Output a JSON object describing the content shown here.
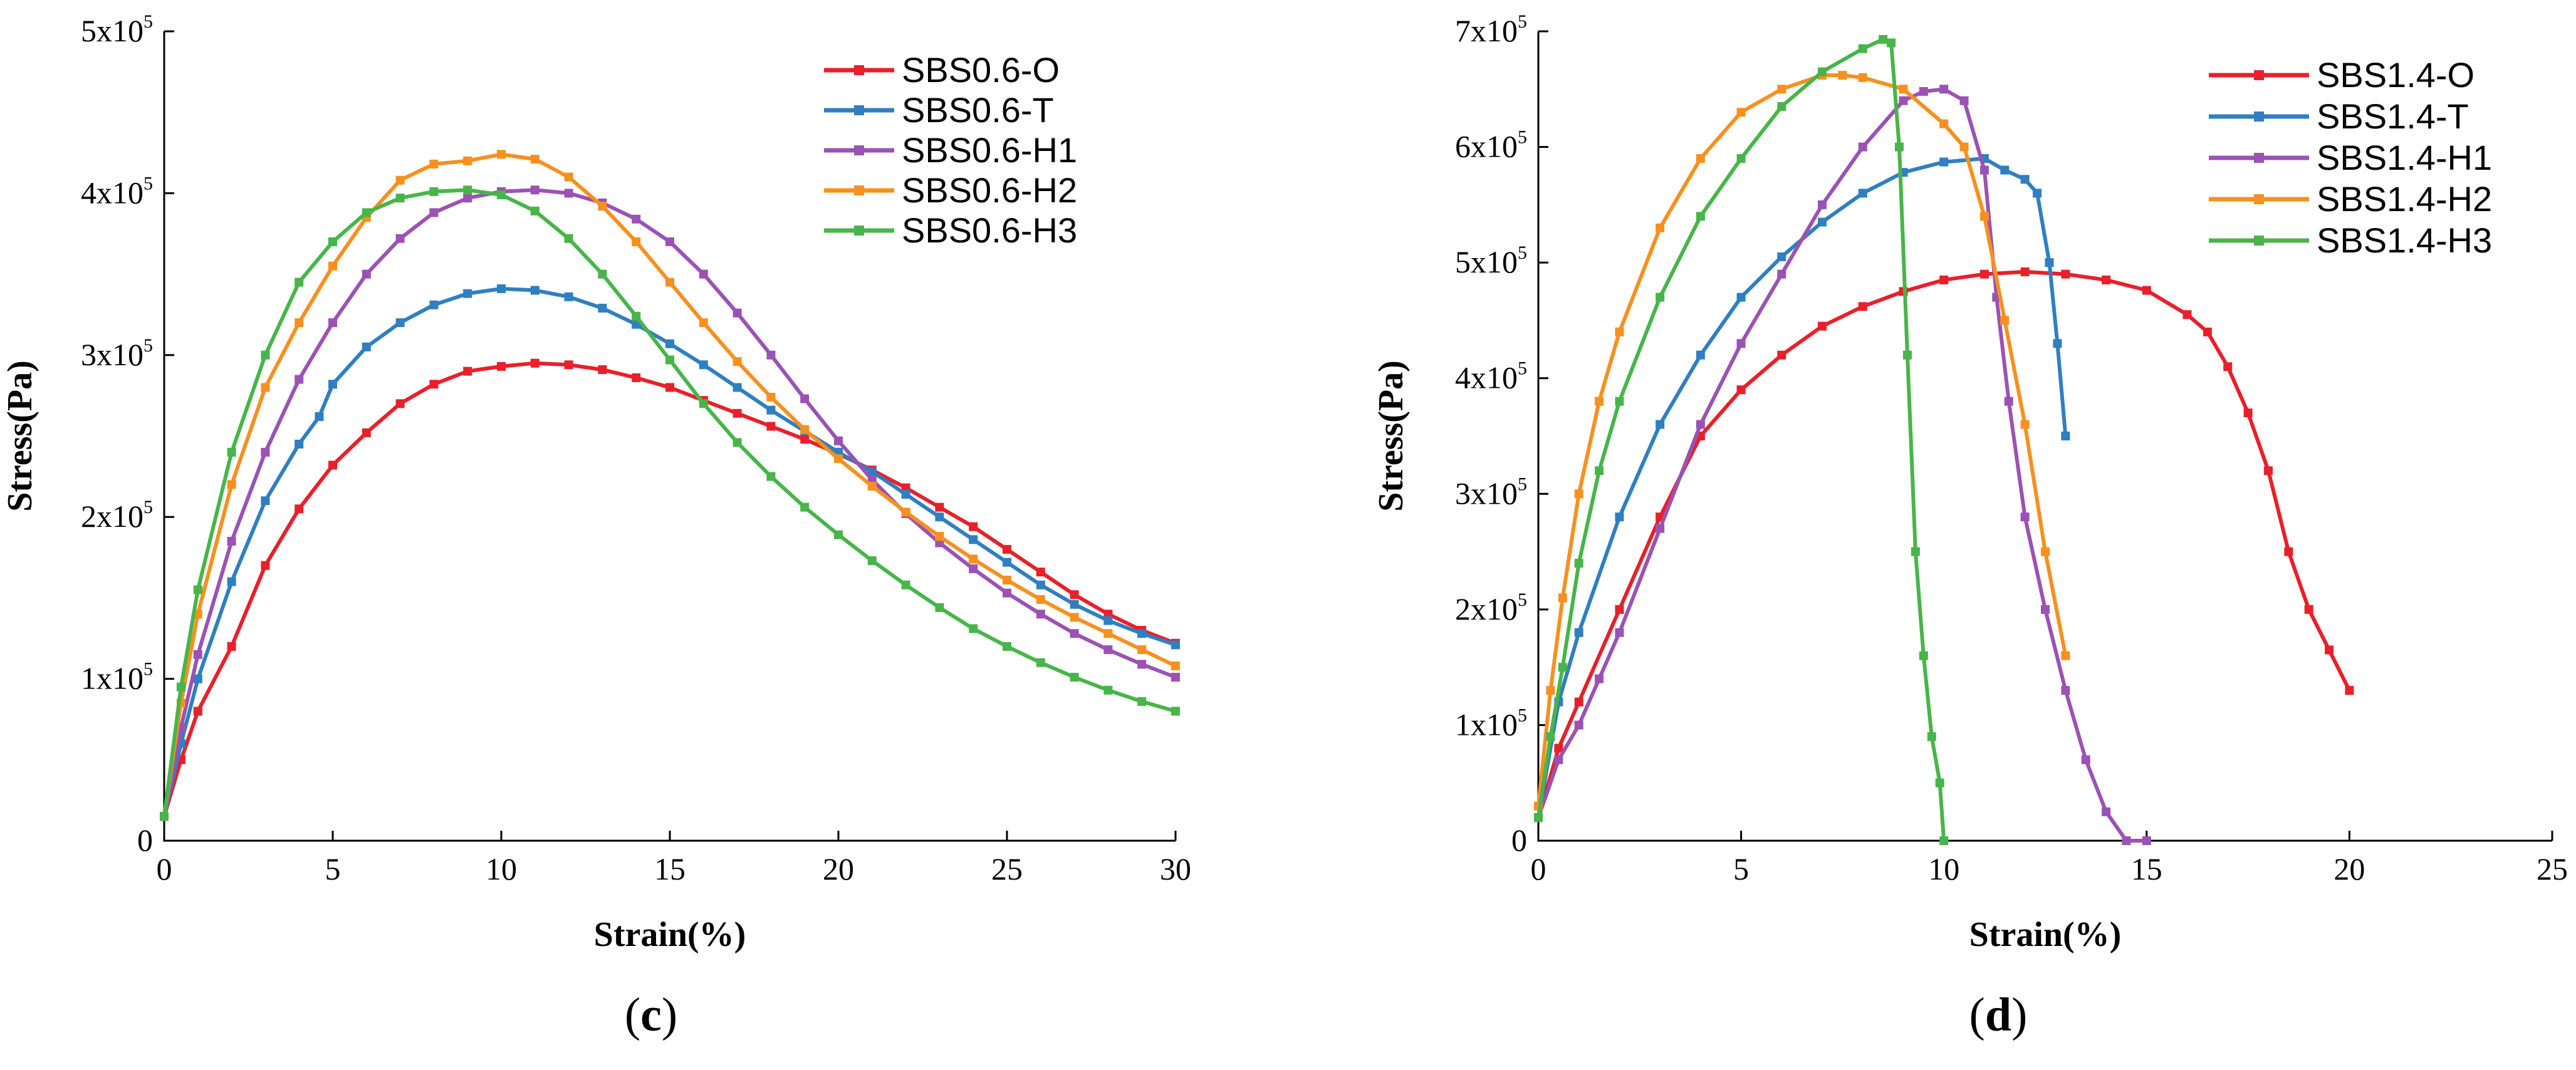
{
  "chart_data": [
    {
      "type": "line",
      "panel_label": "(c)",
      "xlabel": "Strain(%)",
      "ylabel": "Stress(Pa)",
      "xlim": [
        0,
        30
      ],
      "ylim": [
        0,
        500000
      ],
      "x_ticks": [
        0,
        5,
        10,
        15,
        20,
        25,
        30
      ],
      "x_tick_labels": [
        "0",
        "5",
        "10",
        "15",
        "20",
        "25",
        "30"
      ],
      "y_ticks": [
        0,
        100000,
        200000,
        300000,
        400000,
        500000
      ],
      "y_tick_labels": [
        {
          "base": "0",
          "exp": ""
        },
        {
          "base": "1x10",
          "exp": "5"
        },
        {
          "base": "2x10",
          "exp": "5"
        },
        {
          "base": "3x10",
          "exp": "5"
        },
        {
          "base": "4x10",
          "exp": "5"
        },
        {
          "base": "5x10",
          "exp": "5"
        }
      ],
      "legend_position": "top-right",
      "series": [
        {
          "name": "SBS0.6-O",
          "color": "#e8202a",
          "x": [
            0,
            0.5,
            1,
            2,
            3,
            4,
            5,
            6,
            7,
            8,
            9,
            10,
            11,
            12,
            13,
            14,
            15,
            16,
            17,
            18,
            19,
            20,
            21,
            22,
            23,
            24,
            25,
            26,
            27,
            28,
            29,
            30
          ],
          "y": [
            15000,
            50000,
            80000,
            120000,
            170000,
            205000,
            232000,
            252000,
            270000,
            282000,
            290000,
            293000,
            295000,
            294000,
            291000,
            286000,
            280000,
            272000,
            264000,
            256000,
            248000,
            239000,
            229000,
            218000,
            206000,
            194000,
            180000,
            166000,
            152000,
            140000,
            130000,
            122000
          ]
        },
        {
          "name": "SBS0.6-T",
          "color": "#2f7fc1",
          "x": [
            0,
            0.5,
            1,
            2,
            3,
            4,
            4.6,
            5,
            6,
            7,
            8,
            9,
            10,
            11,
            12,
            13,
            14,
            15,
            16,
            17,
            18,
            19,
            20,
            21,
            22,
            23,
            24,
            25,
            26,
            27,
            28,
            29,
            30
          ],
          "y": [
            15000,
            60000,
            100000,
            160000,
            210000,
            245000,
            262000,
            282000,
            305000,
            320000,
            331000,
            338000,
            341000,
            340000,
            336000,
            329000,
            319000,
            307000,
            294000,
            280000,
            266000,
            253000,
            240000,
            228000,
            214000,
            200000,
            186000,
            172000,
            158000,
            146000,
            136000,
            128000,
            121000
          ]
        },
        {
          "name": "SBS0.6-H1",
          "color": "#9b52b4",
          "x": [
            0,
            0.5,
            1,
            2,
            3,
            4,
            5,
            6,
            7,
            8,
            9,
            10,
            11,
            12,
            13,
            14,
            15,
            16,
            17,
            18,
            19,
            20,
            21,
            22,
            23,
            24,
            25,
            26,
            27,
            28,
            29,
            30
          ],
          "y": [
            15000,
            70000,
            115000,
            185000,
            240000,
            285000,
            320000,
            350000,
            372000,
            388000,
            397000,
            401000,
            402000,
            400000,
            394000,
            384000,
            370000,
            350000,
            326000,
            300000,
            273000,
            247000,
            223000,
            202000,
            184000,
            168000,
            153000,
            140000,
            128000,
            118000,
            109000,
            101000
          ]
        },
        {
          "name": "SBS0.6-H2",
          "color": "#f7901e",
          "x": [
            0,
            0.5,
            1,
            2,
            3,
            4,
            5,
            6,
            7,
            8,
            9,
            10,
            11,
            12,
            13,
            14,
            15,
            16,
            17,
            18,
            19,
            20,
            21,
            22,
            23,
            24,
            25,
            26,
            27,
            28,
            29,
            30
          ],
          "y": [
            15000,
            85000,
            140000,
            220000,
            280000,
            320000,
            355000,
            385000,
            408000,
            418000,
            420000,
            424000,
            421000,
            410000,
            392000,
            370000,
            345000,
            320000,
            296000,
            274000,
            254000,
            236000,
            219000,
            203000,
            188000,
            174000,
            161000,
            149000,
            138000,
            128000,
            118000,
            108000
          ]
        },
        {
          "name": "SBS0.6-H3",
          "color": "#47b549",
          "x": [
            0,
            0.5,
            1,
            2,
            3,
            4,
            5,
            6,
            7,
            8,
            9,
            10,
            11,
            12,
            13,
            14,
            15,
            16,
            17,
            18,
            19,
            20,
            21,
            22,
            23,
            24,
            25,
            26,
            27,
            28,
            29,
            30
          ],
          "y": [
            15000,
            95000,
            155000,
            240000,
            300000,
            345000,
            370000,
            388000,
            397000,
            401000,
            402000,
            399000,
            389000,
            372000,
            350000,
            324000,
            297000,
            270000,
            246000,
            225000,
            206000,
            189000,
            173000,
            158000,
            144000,
            131000,
            120000,
            110000,
            101000,
            93000,
            86000,
            80000
          ]
        }
      ]
    },
    {
      "type": "line",
      "panel_label": "(d)",
      "xlabel": "Strain(%)",
      "ylabel": "Stress(Pa)",
      "xlim": [
        0,
        25
      ],
      "ylim": [
        0,
        700000
      ],
      "x_ticks": [
        0,
        5,
        10,
        15,
        20,
        25
      ],
      "x_tick_labels": [
        "0",
        "5",
        "10",
        "15",
        "20",
        "25"
      ],
      "y_ticks": [
        0,
        100000,
        200000,
        300000,
        400000,
        500000,
        600000,
        700000
      ],
      "y_tick_labels": [
        {
          "base": "0",
          "exp": ""
        },
        {
          "base": "1x10",
          "exp": "5"
        },
        {
          "base": "2x10",
          "exp": "5"
        },
        {
          "base": "3x10",
          "exp": "5"
        },
        {
          "base": "4x10",
          "exp": "5"
        },
        {
          "base": "5x10",
          "exp": "5"
        },
        {
          "base": "6x10",
          "exp": "5"
        },
        {
          "base": "7x10",
          "exp": "5"
        }
      ],
      "legend_position": "top-right",
      "series": [
        {
          "name": "SBS1.4-O",
          "color": "#e8202a",
          "x": [
            0,
            0.5,
            1,
            2,
            3,
            4,
            5,
            6,
            7,
            8,
            9,
            10,
            11,
            12,
            13,
            14,
            15,
            16,
            16.5,
            17,
            17.5,
            18,
            18.5,
            19,
            19.5,
            20
          ],
          "y": [
            20000,
            80000,
            120000,
            200000,
            280000,
            350000,
            390000,
            420000,
            445000,
            462000,
            475000,
            485000,
            490000,
            492000,
            490000,
            485000,
            476000,
            455000,
            440000,
            410000,
            370000,
            320000,
            250000,
            200000,
            165000,
            130000
          ]
        },
        {
          "name": "SBS1.4-T",
          "color": "#2f7fc1",
          "x": [
            0,
            0.5,
            1,
            2,
            3,
            4,
            5,
            6,
            7,
            8,
            9,
            10,
            11,
            11.5,
            12,
            12.3,
            12.6,
            12.8,
            13
          ],
          "y": [
            20000,
            120000,
            180000,
            280000,
            360000,
            420000,
            470000,
            505000,
            535000,
            560000,
            578000,
            587000,
            590000,
            580000,
            572000,
            560000,
            500000,
            430000,
            350000
          ]
        },
        {
          "name": "SBS1.4-H1",
          "color": "#9b52b4",
          "x": [
            0,
            0.5,
            1,
            1.5,
            2,
            3,
            4,
            5,
            6,
            7,
            8,
            9,
            9.5,
            10,
            10.5,
            11,
            11.3,
            11.6,
            12,
            12.5,
            13,
            13.5,
            14,
            14.5,
            15
          ],
          "y": [
            20000,
            70000,
            100000,
            140000,
            180000,
            270000,
            360000,
            430000,
            490000,
            550000,
            600000,
            640000,
            648000,
            650000,
            640000,
            580000,
            470000,
            380000,
            280000,
            200000,
            130000,
            70000,
            25000,
            0,
            0
          ]
        },
        {
          "name": "SBS1.4-H2",
          "color": "#f7901e",
          "x": [
            0,
            0.3,
            0.6,
            1,
            1.5,
            2,
            3,
            4,
            5,
            6,
            7,
            7.5,
            8,
            9,
            10,
            10.5,
            11,
            11.5,
            12,
            12.5,
            13
          ],
          "y": [
            30000,
            130000,
            210000,
            300000,
            380000,
            440000,
            530000,
            590000,
            630000,
            650000,
            662000,
            662000,
            660000,
            650000,
            620000,
            600000,
            540000,
            450000,
            360000,
            250000,
            160000
          ]
        },
        {
          "name": "SBS1.4-H3",
          "color": "#47b549",
          "x": [
            0,
            0.3,
            0.6,
            1,
            1.5,
            2,
            3,
            4,
            5,
            6,
            7,
            8,
            8.5,
            8.7,
            8.9,
            9.1,
            9.3,
            9.5,
            9.7,
            9.9,
            10
          ],
          "y": [
            20000,
            90000,
            150000,
            240000,
            320000,
            380000,
            470000,
            540000,
            590000,
            635000,
            665000,
            685000,
            693000,
            690000,
            600000,
            420000,
            250000,
            160000,
            90000,
            50000,
            0
          ]
        }
      ]
    }
  ]
}
